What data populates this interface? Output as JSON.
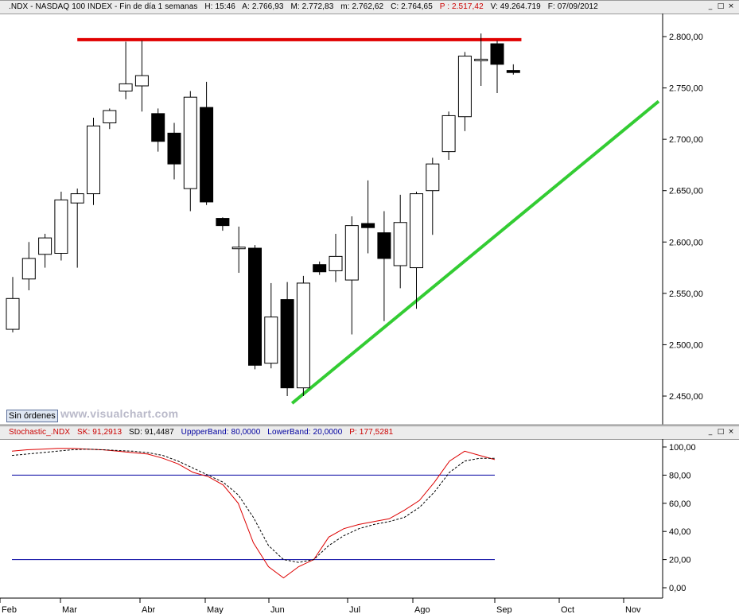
{
  "main_header": {
    "symbol": ".NDX - NASDAQ 100 INDEX - Fin de día 1 semanas",
    "h": "H: 15:46",
    "a": "A: 2.766,93",
    "m": "M: 2.772,83",
    "mlow": "m: 2.762,62",
    "c": "C: 2.764,65",
    "p": "P : 2.517,42",
    "v": "V: 49.264.719",
    "f": "F: 07/09/2012"
  },
  "window_buttons": {
    "minimize": "_",
    "restore": "□",
    "close": "×"
  },
  "sin_ordenes": "Sin órdenes",
  "watermark": "www.visualchart.com",
  "stoch_header": {
    "name": "Stochastic_.NDX",
    "sk": "SK: 91,2913",
    "sd": "SD: 91,4487",
    "upper": "UppperBand: 80,0000",
    "lower": "LowerBand: 20,0000",
    "p": "P: 177,5281"
  },
  "colors": {
    "red_line": "#e00000",
    "green_line": "#33cc33",
    "sk_line": "#dd0000",
    "sd_line": "#000000",
    "band": "#0000a0"
  },
  "chart_data": [
    {
      "type": "candlestick",
      "price_axis_ticks": [
        "2.450,00",
        "2.500,00",
        "2.550,00",
        "2.600,00",
        "2.650,00",
        "2.700,00",
        "2.750,00",
        "2.800,00"
      ],
      "tick_values": [
        2450,
        2500,
        2550,
        2600,
        2650,
        2700,
        2750,
        2800
      ],
      "ylim": [
        2425,
        2830
      ],
      "x_labels": [
        "Feb",
        "Mar",
        "Abr",
        "May",
        "Jun",
        "Jul",
        "Ago",
        "Sep",
        "Oct",
        "Nov"
      ],
      "candles": [
        {
          "o": 2515,
          "h": 2566,
          "l": 2512,
          "c": 2545
        },
        {
          "o": 2564,
          "h": 2600,
          "l": 2553,
          "c": 2584
        },
        {
          "o": 2588,
          "h": 2608,
          "l": 2575,
          "c": 2604
        },
        {
          "o": 2589,
          "h": 2649,
          "l": 2582,
          "c": 2641
        },
        {
          "o": 2638,
          "h": 2652,
          "l": 2575,
          "c": 2647
        },
        {
          "o": 2647,
          "h": 2721,
          "l": 2636,
          "c": 2713
        },
        {
          "o": 2716,
          "h": 2730,
          "l": 2710,
          "c": 2728
        },
        {
          "o": 2747,
          "h": 2795,
          "l": 2739,
          "c": 2754
        },
        {
          "o": 2752,
          "h": 2796,
          "l": 2727,
          "c": 2762
        },
        {
          "o": 2725,
          "h": 2730,
          "l": 2688,
          "c": 2698
        },
        {
          "o": 2706,
          "h": 2716,
          "l": 2661,
          "c": 2676
        },
        {
          "o": 2652,
          "h": 2747,
          "l": 2630,
          "c": 2741
        },
        {
          "o": 2731,
          "h": 2756,
          "l": 2636,
          "c": 2639
        },
        {
          "o": 2623,
          "h": 2624,
          "l": 2611,
          "c": 2616
        },
        {
          "o": 2595,
          "h": 2615,
          "l": 2570,
          "c": 2595
        },
        {
          "o": 2594,
          "h": 2597,
          "l": 2476,
          "c": 2480
        },
        {
          "o": 2482,
          "h": 2560,
          "l": 2477,
          "c": 2527
        },
        {
          "o": 2544,
          "h": 2561,
          "l": 2450,
          "c": 2458
        },
        {
          "o": 2458,
          "h": 2567,
          "l": 2450,
          "c": 2560
        },
        {
          "o": 2578,
          "h": 2581,
          "l": 2568,
          "c": 2571
        },
        {
          "o": 2572,
          "h": 2608,
          "l": 2561,
          "c": 2586
        },
        {
          "o": 2563,
          "h": 2625,
          "l": 2510,
          "c": 2616
        },
        {
          "o": 2618,
          "h": 2660,
          "l": 2589,
          "c": 2614
        },
        {
          "o": 2609,
          "h": 2630,
          "l": 2523,
          "c": 2584
        },
        {
          "o": 2577,
          "h": 2646,
          "l": 2555,
          "c": 2619
        },
        {
          "o": 2575,
          "h": 2649,
          "l": 2535,
          "c": 2647
        },
        {
          "o": 2650,
          "h": 2682,
          "l": 2607,
          "c": 2676
        },
        {
          "o": 2688,
          "h": 2727,
          "l": 2680,
          "c": 2723
        },
        {
          "o": 2722,
          "h": 2785,
          "l": 2708,
          "c": 2781
        },
        {
          "o": 2778,
          "h": 2803,
          "l": 2752,
          "c": 2778
        },
        {
          "o": 2793,
          "h": 2796,
          "l": 2745,
          "c": 2773
        },
        {
          "o": 2767,
          "h": 2773,
          "l": 2763,
          "c": 2765
        }
      ],
      "resistance_line": {
        "from_candle": 4,
        "to_candle": 31.5,
        "value": 2797
      },
      "trend_line": {
        "from_candle": 17.3,
        "from_value": 2443,
        "to_candle": 40,
        "to_value": 2737
      }
    },
    {
      "type": "line",
      "ylim": [
        -10,
        110
      ],
      "y_ticks": [
        "0,00",
        "20,00",
        "40,00",
        "60,00",
        "80,00",
        "100,00"
      ],
      "tick_values": [
        0,
        20,
        40,
        60,
        80,
        100
      ],
      "bands": [
        80,
        20
      ],
      "series": [
        {
          "name": "SK",
          "values": [
            97,
            98,
            98.5,
            99,
            99,
            98.5,
            98,
            97,
            96,
            95,
            92,
            88,
            82,
            79,
            73,
            60,
            32,
            15,
            7,
            15,
            20,
            36,
            42,
            45,
            47,
            49,
            55,
            62,
            75,
            90,
            97,
            94,
            91
          ]
        },
        {
          "name": "SD",
          "values": [
            94,
            95,
            96,
            97,
            98,
            98.5,
            98,
            97.5,
            97,
            96,
            94,
            90,
            85,
            80,
            75,
            66,
            50,
            30,
            20,
            18,
            20,
            30,
            37,
            42,
            45,
            47,
            50,
            57,
            68,
            82,
            90,
            92,
            92
          ]
        }
      ],
      "x_labels": [
        "Feb",
        "Mar",
        "Abr",
        "May",
        "Jun",
        "Jul",
        "Ago",
        "Sep",
        "Oct",
        "Nov"
      ]
    }
  ]
}
